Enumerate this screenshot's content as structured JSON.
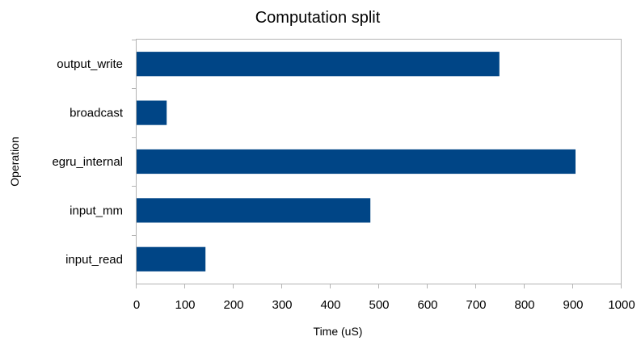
{
  "chart_data": {
    "type": "bar",
    "orientation": "horizontal",
    "title": "Computation split",
    "xlabel": "Time (uS)",
    "ylabel": "Operation",
    "categories": [
      "output_write",
      "broadcast",
      "egru_internal",
      "input_mm",
      "input_read"
    ],
    "values": [
      748,
      62,
      905,
      482,
      142
    ],
    "xlim": [
      0,
      1000
    ],
    "xticks": [
      0,
      100,
      200,
      300,
      400,
      500,
      600,
      700,
      800,
      900,
      1000
    ],
    "grid": false,
    "legend": "none",
    "colors": {
      "bar": "#004586",
      "axis": "#b3b3b3"
    }
  }
}
